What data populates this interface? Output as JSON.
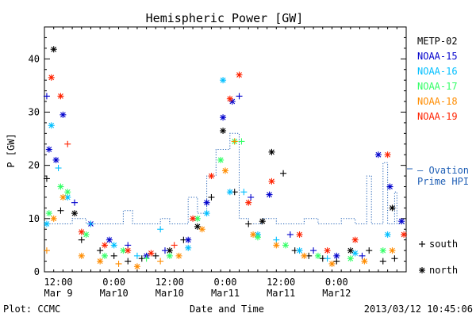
{
  "chart_data": {
    "type": "scatter",
    "title": "Hemispheric Power [GW]",
    "xlabel": "Date and Time",
    "ylabel": "P [GW]",
    "ylim": [
      0,
      46
    ],
    "xlim": [
      "2013-03-09T09:00",
      "2013-03-12T15:00"
    ],
    "grid": false,
    "yticks": [
      0,
      10,
      20,
      30,
      40
    ],
    "xticks": [
      {
        "time": "2013-03-09T12:00",
        "label_top": "12:00",
        "label_bottom": "Mar 9"
      },
      {
        "time": "2013-03-10T00:00",
        "label_top": "0:00",
        "label_bottom": "Mar10"
      },
      {
        "time": "2013-03-10T12:00",
        "label_top": "12:00",
        "label_bottom": "Mar10"
      },
      {
        "time": "2013-03-11T00:00",
        "label_top": "0:00",
        "label_bottom": "Mar11"
      },
      {
        "time": "2013-03-11T12:00",
        "label_top": "12:00",
        "label_bottom": "Mar11"
      },
      {
        "time": "2013-03-12T00:00",
        "label_top": "0:00",
        "label_bottom": "Mar12"
      }
    ],
    "legend_position": "right",
    "series": [
      {
        "name": "METP-02",
        "color": "#000000",
        "points": [
          {
            "t": "2013-03-09T09:30",
            "v": 17.5,
            "m": "+"
          },
          {
            "t": "2013-03-09T11:00",
            "v": 41.8,
            "m": "*"
          },
          {
            "t": "2013-03-09T12:30",
            "v": 11.5,
            "m": "+"
          },
          {
            "t": "2013-03-09T15:30",
            "v": 11,
            "m": "*"
          },
          {
            "t": "2013-03-09T17:00",
            "v": 6,
            "m": "+"
          },
          {
            "t": "2013-03-09T21:00",
            "v": 4,
            "m": "+"
          },
          {
            "t": "2013-03-10T00:00",
            "v": 3,
            "m": "+"
          },
          {
            "t": "2013-03-10T03:00",
            "v": 2,
            "m": "+"
          },
          {
            "t": "2013-03-10T06:00",
            "v": 2.5,
            "m": "+"
          },
          {
            "t": "2013-03-10T09:00",
            "v": 3,
            "m": "+"
          },
          {
            "t": "2013-03-10T12:00",
            "v": 4,
            "m": "*"
          },
          {
            "t": "2013-03-10T15:00",
            "v": 6,
            "m": "+"
          },
          {
            "t": "2013-03-10T18:00",
            "v": 8.5,
            "m": "*"
          },
          {
            "t": "2013-03-10T21:00",
            "v": 14,
            "m": "+"
          },
          {
            "t": "2013-03-10T23:30",
            "v": 26.5,
            "m": "*"
          },
          {
            "t": "2013-03-11T02:00",
            "v": 15,
            "m": "+"
          },
          {
            "t": "2013-03-11T05:00",
            "v": 9,
            "m": "+"
          },
          {
            "t": "2013-03-11T08:00",
            "v": 9.5,
            "m": "*"
          },
          {
            "t": "2013-03-11T10:00",
            "v": 22.5,
            "m": "*"
          },
          {
            "t": "2013-03-11T12:30",
            "v": 18.5,
            "m": "+"
          },
          {
            "t": "2013-03-11T15:00",
            "v": 4,
            "m": "+"
          },
          {
            "t": "2013-03-11T18:00",
            "v": 3,
            "m": "+"
          },
          {
            "t": "2013-03-11T21:00",
            "v": 2.5,
            "m": "+"
          },
          {
            "t": "2013-03-12T00:00",
            "v": 2,
            "m": "+"
          },
          {
            "t": "2013-03-12T03:00",
            "v": 4,
            "m": "*"
          },
          {
            "t": "2013-03-12T07:00",
            "v": 4,
            "m": "+"
          },
          {
            "t": "2013-03-12T10:00",
            "v": 2,
            "m": "+"
          },
          {
            "t": "2013-03-12T12:00",
            "v": 12,
            "m": "*"
          },
          {
            "t": "2013-03-12T12:30",
            "v": 2.5,
            "m": "+"
          }
        ]
      },
      {
        "name": "NOAA-15",
        "color": "#0000cc",
        "points": [
          {
            "t": "2013-03-09T09:30",
            "v": 33,
            "m": "+"
          },
          {
            "t": "2013-03-09T10:00",
            "v": 23,
            "m": "*"
          },
          {
            "t": "2013-03-09T11:30",
            "v": 21,
            "m": "*"
          },
          {
            "t": "2013-03-09T13:00",
            "v": 29.5,
            "m": "*"
          },
          {
            "t": "2013-03-09T15:30",
            "v": 13,
            "m": "+"
          },
          {
            "t": "2013-03-09T19:00",
            "v": 9,
            "m": "*"
          },
          {
            "t": "2013-03-09T23:00",
            "v": 6,
            "m": "*"
          },
          {
            "t": "2013-03-10T03:00",
            "v": 5,
            "m": "+"
          },
          {
            "t": "2013-03-10T07:00",
            "v": 3,
            "m": "*"
          },
          {
            "t": "2013-03-10T11:00",
            "v": 4,
            "m": "+"
          },
          {
            "t": "2013-03-10T16:00",
            "v": 6,
            "m": "*"
          },
          {
            "t": "2013-03-10T20:00",
            "v": 13,
            "m": "*"
          },
          {
            "t": "2013-03-10T23:30",
            "v": 29,
            "m": "*"
          },
          {
            "t": "2013-03-11T01:30",
            "v": 32,
            "m": "*"
          },
          {
            "t": "2013-03-11T03:00",
            "v": 33,
            "m": "+"
          },
          {
            "t": "2013-03-11T05:30",
            "v": 14,
            "m": "+"
          },
          {
            "t": "2013-03-11T09:30",
            "v": 14.5,
            "m": "*"
          },
          {
            "t": "2013-03-11T14:00",
            "v": 7,
            "m": "+"
          },
          {
            "t": "2013-03-11T19:00",
            "v": 4,
            "m": "+"
          },
          {
            "t": "2013-03-12T00:00",
            "v": 3,
            "m": "*"
          },
          {
            "t": "2013-03-12T05:30",
            "v": 3,
            "m": "+"
          },
          {
            "t": "2013-03-12T09:00",
            "v": 22,
            "m": "*"
          },
          {
            "t": "2013-03-12T11:30",
            "v": 16,
            "m": "*"
          },
          {
            "t": "2013-03-12T14:00",
            "v": 9.5,
            "m": "*"
          }
        ]
      },
      {
        "name": "NOAA-16",
        "color": "#00bfff",
        "points": [
          {
            "t": "2013-03-09T09:30",
            "v": 9,
            "m": "*"
          },
          {
            "t": "2013-03-09T10:30",
            "v": 27.5,
            "m": "*"
          },
          {
            "t": "2013-03-09T12:00",
            "v": 19.5,
            "m": "+"
          },
          {
            "t": "2013-03-09T14:00",
            "v": 14,
            "m": "*"
          },
          {
            "t": "2013-03-09T19:00",
            "v": 9,
            "m": "+"
          },
          {
            "t": "2013-03-10T00:00",
            "v": 5,
            "m": "*"
          },
          {
            "t": "2013-03-10T05:00",
            "v": 3,
            "m": "+"
          },
          {
            "t": "2013-03-10T10:00",
            "v": 8,
            "m": "+"
          },
          {
            "t": "2013-03-10T16:00",
            "v": 4.5,
            "m": "*"
          },
          {
            "t": "2013-03-10T20:00",
            "v": 11,
            "m": "*"
          },
          {
            "t": "2013-03-10T23:30",
            "v": 36,
            "m": "*"
          },
          {
            "t": "2013-03-11T01:00",
            "v": 15,
            "m": "*"
          },
          {
            "t": "2013-03-11T04:00",
            "v": 15,
            "m": "+"
          },
          {
            "t": "2013-03-11T07:00",
            "v": 7,
            "m": "*"
          },
          {
            "t": "2013-03-11T11:00",
            "v": 6,
            "m": "+"
          },
          {
            "t": "2013-03-11T16:00",
            "v": 4,
            "m": "*"
          },
          {
            "t": "2013-03-11T22:00",
            "v": 2.5,
            "m": "+"
          },
          {
            "t": "2013-03-12T04:00",
            "v": 3.5,
            "m": "*"
          },
          {
            "t": "2013-03-12T11:00",
            "v": 7,
            "m": "*"
          }
        ]
      },
      {
        "name": "NOAA-17",
        "color": "#33ff66",
        "points": [
          {
            "t": "2013-03-09T10:00",
            "v": 11,
            "m": "*"
          },
          {
            "t": "2013-03-09T12:30",
            "v": 16,
            "m": "*"
          },
          {
            "t": "2013-03-09T14:00",
            "v": 15,
            "m": "*"
          },
          {
            "t": "2013-03-09T18:00",
            "v": 7,
            "m": "*"
          },
          {
            "t": "2013-03-09T22:00",
            "v": 3,
            "m": "*"
          },
          {
            "t": "2013-03-10T02:00",
            "v": 4,
            "m": "*"
          },
          {
            "t": "2013-03-10T07:00",
            "v": 2.5,
            "m": "+"
          },
          {
            "t": "2013-03-10T12:00",
            "v": 3,
            "m": "*"
          },
          {
            "t": "2013-03-10T18:00",
            "v": 10,
            "m": "*"
          },
          {
            "t": "2013-03-10T23:00",
            "v": 21,
            "m": "*"
          },
          {
            "t": "2013-03-11T02:00",
            "v": 24.5,
            "m": "*"
          },
          {
            "t": "2013-03-11T03:30",
            "v": 24.5,
            "m": "+"
          },
          {
            "t": "2013-03-11T07:00",
            "v": 6.5,
            "m": "*"
          },
          {
            "t": "2013-03-11T13:00",
            "v": 5,
            "m": "*"
          },
          {
            "t": "2013-03-11T20:00",
            "v": 3,
            "m": "*"
          },
          {
            "t": "2013-03-12T03:00",
            "v": 2.5,
            "m": "*"
          },
          {
            "t": "2013-03-12T10:00",
            "v": 4,
            "m": "*"
          }
        ]
      },
      {
        "name": "NOAA-18",
        "color": "#ff8c00",
        "points": [
          {
            "t": "2013-03-09T09:30",
            "v": 4,
            "m": "+"
          },
          {
            "t": "2013-03-09T11:00",
            "v": 10,
            "m": "*"
          },
          {
            "t": "2013-03-09T13:00",
            "v": 14,
            "m": "*"
          },
          {
            "t": "2013-03-09T17:00",
            "v": 3,
            "m": "*"
          },
          {
            "t": "2013-03-09T21:00",
            "v": 2,
            "m": "*"
          },
          {
            "t": "2013-03-10T01:00",
            "v": 1.5,
            "m": "+"
          },
          {
            "t": "2013-03-10T05:00",
            "v": 1,
            "m": "*"
          },
          {
            "t": "2013-03-10T10:00",
            "v": 2,
            "m": "+"
          },
          {
            "t": "2013-03-10T14:00",
            "v": 3,
            "m": "*"
          },
          {
            "t": "2013-03-10T19:00",
            "v": 8,
            "m": "*"
          },
          {
            "t": "2013-03-11T00:00",
            "v": 19,
            "m": "*"
          },
          {
            "t": "2013-03-11T02:00",
            "v": 24.5,
            "m": "+"
          },
          {
            "t": "2013-03-11T06:00",
            "v": 7,
            "m": "*"
          },
          {
            "t": "2013-03-11T11:00",
            "v": 5,
            "m": "*"
          },
          {
            "t": "2013-03-11T17:00",
            "v": 3,
            "m": "*"
          },
          {
            "t": "2013-03-11T23:00",
            "v": 1.5,
            "m": "*"
          },
          {
            "t": "2013-03-12T06:00",
            "v": 2,
            "m": "*"
          },
          {
            "t": "2013-03-12T12:00",
            "v": 4,
            "m": "*"
          }
        ]
      },
      {
        "name": "NOAA-19",
        "color": "#ff2200",
        "points": [
          {
            "t": "2013-03-09T10:30",
            "v": 36.5,
            "m": "*"
          },
          {
            "t": "2013-03-09T12:30",
            "v": 33,
            "m": "*"
          },
          {
            "t": "2013-03-09T14:00",
            "v": 24,
            "m": "+"
          },
          {
            "t": "2013-03-09T17:00",
            "v": 7.5,
            "m": "*"
          },
          {
            "t": "2013-03-09T22:00",
            "v": 5,
            "m": "*"
          },
          {
            "t": "2013-03-10T03:00",
            "v": 4,
            "m": "*"
          },
          {
            "t": "2013-03-10T08:00",
            "v": 3.5,
            "m": "*"
          },
          {
            "t": "2013-03-10T13:00",
            "v": 5,
            "m": "+"
          },
          {
            "t": "2013-03-10T17:00",
            "v": 10,
            "m": "*"
          },
          {
            "t": "2013-03-10T21:00",
            "v": 18,
            "m": "*"
          },
          {
            "t": "2013-03-11T01:00",
            "v": 32.5,
            "m": "*"
          },
          {
            "t": "2013-03-11T03:00",
            "v": 37,
            "m": "*"
          },
          {
            "t": "2013-03-11T05:00",
            "v": 13,
            "m": "*"
          },
          {
            "t": "2013-03-11T10:00",
            "v": 17,
            "m": "*"
          },
          {
            "t": "2013-03-11T16:00",
            "v": 7,
            "m": "*"
          },
          {
            "t": "2013-03-11T22:00",
            "v": 4,
            "m": "*"
          },
          {
            "t": "2013-03-12T04:00",
            "v": 6,
            "m": "*"
          },
          {
            "t": "2013-03-12T11:00",
            "v": 22,
            "m": "*"
          },
          {
            "t": "2013-03-12T14:30",
            "v": 7,
            "m": "*"
          }
        ]
      }
    ],
    "ovation": {
      "name": "Ovation Prime HPI",
      "color": "#1f5fb5",
      "label_lines": [
        "— Ovation",
        "Prime HPI"
      ],
      "points": [
        {
          "t": "2013-03-09T09:00",
          "v": 9
        },
        {
          "t": "2013-03-09T15:00",
          "v": 9
        },
        {
          "t": "2013-03-09T15:00",
          "v": 10
        },
        {
          "t": "2013-03-09T18:00",
          "v": 10
        },
        {
          "t": "2013-03-09T18:00",
          "v": 9
        },
        {
          "t": "2013-03-10T02:00",
          "v": 9
        },
        {
          "t": "2013-03-10T02:00",
          "v": 11.5
        },
        {
          "t": "2013-03-10T04:00",
          "v": 11.5
        },
        {
          "t": "2013-03-10T04:00",
          "v": 9
        },
        {
          "t": "2013-03-10T10:00",
          "v": 9
        },
        {
          "t": "2013-03-10T10:00",
          "v": 10
        },
        {
          "t": "2013-03-10T12:00",
          "v": 10
        },
        {
          "t": "2013-03-10T12:00",
          "v": 9
        },
        {
          "t": "2013-03-10T16:00",
          "v": 9
        },
        {
          "t": "2013-03-10T16:00",
          "v": 14
        },
        {
          "t": "2013-03-10T18:00",
          "v": 14
        },
        {
          "t": "2013-03-10T18:00",
          "v": 11
        },
        {
          "t": "2013-03-10T20:00",
          "v": 11
        },
        {
          "t": "2013-03-10T20:00",
          "v": 18
        },
        {
          "t": "2013-03-10T22:00",
          "v": 18
        },
        {
          "t": "2013-03-10T22:00",
          "v": 23
        },
        {
          "t": "2013-03-11T01:00",
          "v": 23
        },
        {
          "t": "2013-03-11T01:00",
          "v": 26
        },
        {
          "t": "2013-03-11T03:00",
          "v": 26
        },
        {
          "t": "2013-03-11T03:00",
          "v": 10
        },
        {
          "t": "2013-03-11T05:00",
          "v": 10
        },
        {
          "t": "2013-03-11T05:00",
          "v": 9
        },
        {
          "t": "2013-03-11T08:00",
          "v": 9
        },
        {
          "t": "2013-03-11T08:00",
          "v": 10
        },
        {
          "t": "2013-03-11T11:00",
          "v": 10
        },
        {
          "t": "2013-03-11T11:00",
          "v": 9
        },
        {
          "t": "2013-03-11T17:00",
          "v": 9
        },
        {
          "t": "2013-03-11T17:00",
          "v": 10
        },
        {
          "t": "2013-03-11T20:00",
          "v": 10
        },
        {
          "t": "2013-03-11T20:00",
          "v": 9
        },
        {
          "t": "2013-03-12T01:00",
          "v": 9
        },
        {
          "t": "2013-03-12T01:00",
          "v": 10
        },
        {
          "t": "2013-03-12T04:00",
          "v": 10
        },
        {
          "t": "2013-03-12T04:00",
          "v": 9
        },
        {
          "t": "2013-03-12T06:30",
          "v": 9
        },
        {
          "t": "2013-03-12T06:30",
          "v": 18
        },
        {
          "t": "2013-03-12T07:30",
          "v": 18
        },
        {
          "t": "2013-03-12T07:30",
          "v": 9
        },
        {
          "t": "2013-03-12T10:00",
          "v": 9
        },
        {
          "t": "2013-03-12T10:00",
          "v": 20.5
        },
        {
          "t": "2013-03-12T11:00",
          "v": 20.5
        },
        {
          "t": "2013-03-12T11:00",
          "v": 9
        },
        {
          "t": "2013-03-12T12:30",
          "v": 9
        },
        {
          "t": "2013-03-12T12:30",
          "v": 15
        },
        {
          "t": "2013-03-12T13:00",
          "v": 15
        },
        {
          "t": "2013-03-12T13:00",
          "v": 9
        },
        {
          "t": "2013-03-12T15:00",
          "v": 9
        }
      ]
    },
    "marker_legend": [
      {
        "symbol": "+",
        "label": "south"
      },
      {
        "symbol": "*",
        "label": "north"
      }
    ]
  },
  "footer": {
    "left": "Plot: CCMC",
    "right": "2013/03/12 10:45:06"
  }
}
